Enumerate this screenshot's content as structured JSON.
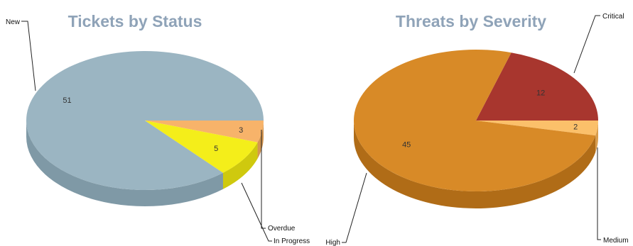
{
  "chart_data": [
    {
      "type": "pie",
      "title": "Tickets by Status",
      "slices": [
        {
          "label": "New",
          "value": 51,
          "color": "#9bb5c2",
          "side": "#7f99a6",
          "callout": "upper-left"
        },
        {
          "label": "Overdue",
          "value": 3,
          "color": "#f7b36a",
          "side": "#d39550",
          "callout": "below"
        },
        {
          "label": "In Progress",
          "value": 5,
          "color": "#f4ee1a",
          "side": "#cfc90e",
          "callout": "below"
        }
      ]
    },
    {
      "type": "pie",
      "title": "Threats by Severity",
      "slices": [
        {
          "label": "Critical",
          "value": 12,
          "color": "#a8362e",
          "side": "#85261f",
          "callout": "upper-right"
        },
        {
          "label": "Medium",
          "value": 2,
          "color": "#fbc06a",
          "side": "#d89c4c",
          "callout": "lower-right"
        },
        {
          "label": "High",
          "value": 45,
          "color": "#d88a27",
          "side": "#b06c17",
          "callout": "lower-left"
        }
      ]
    }
  ],
  "colors": {
    "title": "#8fa3b8",
    "background": "#ffffff",
    "leader": "#222222"
  }
}
